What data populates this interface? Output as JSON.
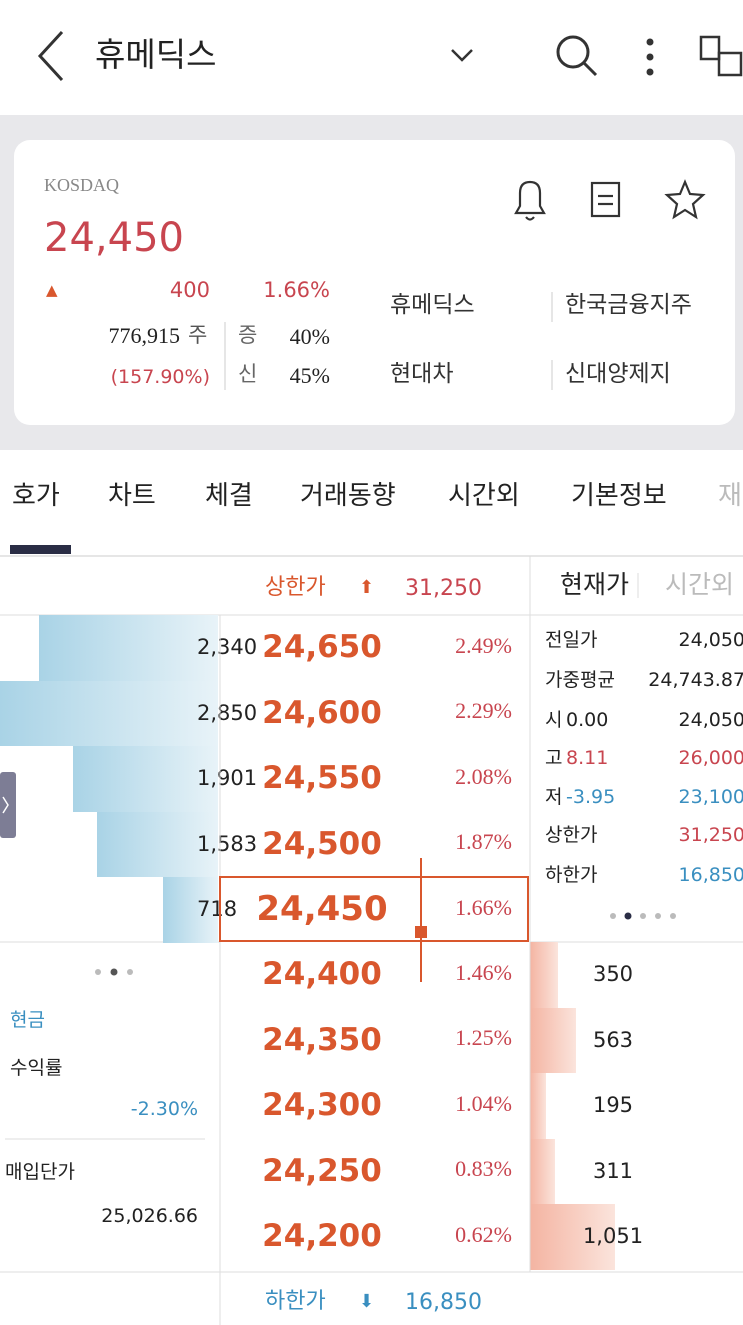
{
  "header": {
    "title": "휴메딕스"
  },
  "summary": {
    "market": "KOSDAQ",
    "price": "24,450",
    "change_sign": "▲",
    "change": "400",
    "change_pct": "1.66%",
    "volume": "776,915",
    "volume_unit": "주",
    "volume_ratio": "(157.90%)",
    "margin_label": "증",
    "margin": "40%",
    "credit_label": "신",
    "credit": "45%",
    "related": [
      "휴메딕스",
      "한국금융지주",
      "현대차",
      "신대양제지"
    ]
  },
  "tabs": [
    "호가",
    "차트",
    "체결",
    "거래동향",
    "시간외",
    "기본정보",
    "재"
  ],
  "orderbook": {
    "upper_limit_label": "상한가",
    "upper_limit_arrow": "⬆",
    "upper_limit": "31,250",
    "view_tabs": [
      "현재가",
      "시간외"
    ],
    "asks": [
      {
        "qty": "2,340",
        "price": "24,650",
        "pct": "2.49%"
      },
      {
        "qty": "2,850",
        "price": "24,600",
        "pct": "2.29%"
      },
      {
        "qty": "1,901",
        "price": "24,550",
        "pct": "2.08%"
      },
      {
        "qty": "1,583",
        "price": "24,500",
        "pct": "1.87%"
      },
      {
        "qty": "718",
        "price": "24,450",
        "pct": "1.66%"
      }
    ],
    "bids": [
      {
        "qty": "350",
        "price": "24,400",
        "pct": "1.46%"
      },
      {
        "qty": "563",
        "price": "24,350",
        "pct": "1.25%"
      },
      {
        "qty": "195",
        "price": "24,300",
        "pct": "1.04%"
      },
      {
        "qty": "311",
        "price": "24,250",
        "pct": "0.83%"
      },
      {
        "qty": "1,051",
        "price": "24,200",
        "pct": "0.62%"
      }
    ],
    "lower_limit_label": "하한가",
    "lower_limit_arrow": "⬇",
    "lower_limit": "16,850"
  },
  "info": [
    {
      "label": "전일가",
      "value": "24,050"
    },
    {
      "label": "가중평균",
      "value": "24,743.87"
    },
    {
      "label": "시",
      "sub": "0.00",
      "value": "24,050"
    },
    {
      "label": "고",
      "sub": "8.11",
      "value": "26,000",
      "color": "#c8454f"
    },
    {
      "label": "저",
      "sub": "-3.95",
      "value": "23,100",
      "color": "#3a8fc0"
    },
    {
      "label": "상한가",
      "value": "31,250",
      "color": "#c8454f"
    },
    {
      "label": "하한가",
      "value": "16,850",
      "color": "#3a8fc0"
    }
  ],
  "position": {
    "cash": "현금",
    "return_label": "수익률",
    "return": "-2.30%",
    "avg_price_label": "매입단가",
    "avg_price": "25,026.66"
  }
}
